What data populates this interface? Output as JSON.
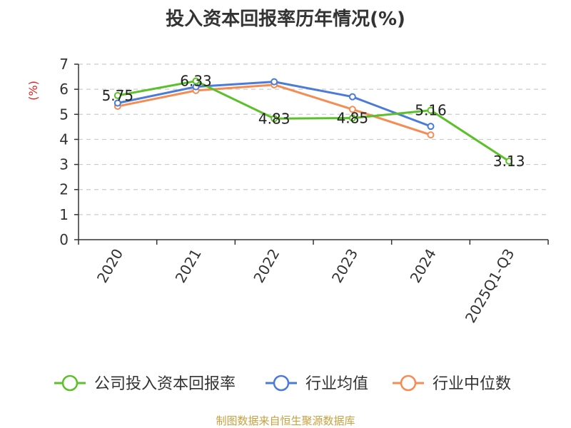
{
  "chart_data": {
    "type": "line",
    "title": "投入资本回报率历年情况(%)",
    "ylabel": "(%)",
    "categories": [
      "2020",
      "2021",
      "2022",
      "2023",
      "2024",
      "2025Q1-Q3"
    ],
    "ylim": [
      0,
      7
    ],
    "yticks": [
      0,
      1,
      2,
      3,
      4,
      5,
      6,
      7
    ],
    "grid": "horizontal dashed",
    "legend_position": "bottom",
    "series": [
      {
        "name": "公司投入资本回报率",
        "color": "#5cc02a",
        "values": [
          5.75,
          6.33,
          4.83,
          4.85,
          5.16,
          3.13
        ],
        "labels": [
          "5.75",
          "6.33",
          "4.83",
          "4.85",
          "5.16",
          "3.13"
        ]
      },
      {
        "name": "行业均值",
        "color": "#4b7bd8",
        "values": [
          5.45,
          6.1,
          6.3,
          5.7,
          4.52,
          null
        ]
      },
      {
        "name": "行业中位数",
        "color": "#f58c54",
        "values": [
          5.32,
          5.95,
          6.18,
          5.2,
          4.18,
          null
        ]
      }
    ]
  },
  "footer": {
    "source": "制图数据来自恒生聚源数据库"
  }
}
